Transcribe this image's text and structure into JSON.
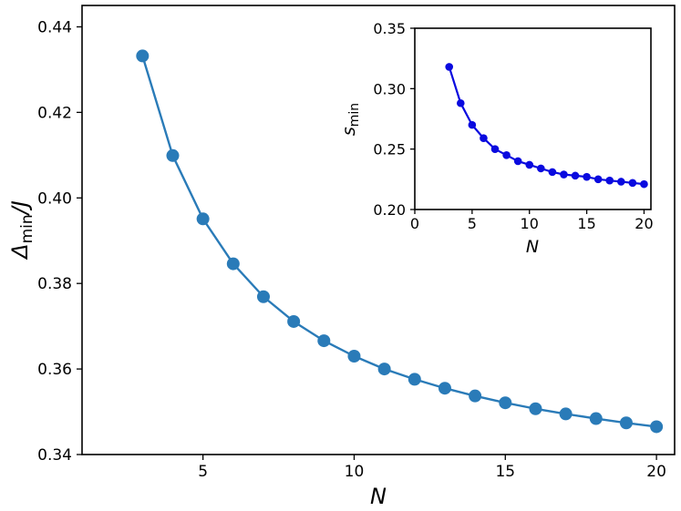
{
  "chart_data": [
    {
      "type": "line",
      "role": "main",
      "xlabel": "N",
      "ylabel": {
        "base": "Δ",
        "sub": "min",
        "suffix": "/J"
      },
      "xlim": [
        1,
        20.6
      ],
      "ylim": [
        0.34,
        0.445
      ],
      "x_ticks": [
        5,
        10,
        15,
        20
      ],
      "y_ticks": [
        0.34,
        0.36,
        0.38,
        0.4,
        0.42,
        0.44
      ],
      "x_tick_labels": [
        "5",
        "10",
        "15",
        "20"
      ],
      "y_tick_labels": [
        "0.34",
        "0.36",
        "0.38",
        "0.40",
        "0.42",
        "0.44"
      ],
      "grid": false,
      "color": "#2a7bb8",
      "series": [
        {
          "x": [
            3,
            4,
            5,
            6,
            7,
            8,
            9,
            10,
            11,
            12,
            13,
            14,
            15,
            16,
            17,
            18,
            19,
            20
          ],
          "values": [
            0.4332,
            0.4099,
            0.3951,
            0.3846,
            0.3769,
            0.3711,
            0.3666,
            0.363,
            0.36,
            0.3576,
            0.3555,
            0.3537,
            0.3521,
            0.3507,
            0.3495,
            0.3484,
            0.3474,
            0.3465
          ]
        }
      ]
    },
    {
      "type": "line",
      "role": "inset",
      "xlabel": "N",
      "ylabel": {
        "base": "s",
        "sub": "min",
        "suffix": ""
      },
      "xlim": [
        0,
        20.6
      ],
      "ylim": [
        0.2,
        0.35
      ],
      "x_ticks": [
        0,
        5,
        10,
        15,
        20
      ],
      "y_ticks": [
        0.2,
        0.25,
        0.3,
        0.35
      ],
      "x_tick_labels": [
        "0",
        "5",
        "10",
        "15",
        "20"
      ],
      "y_tick_labels": [
        "0.20",
        "0.25",
        "0.30",
        "0.35"
      ],
      "grid": false,
      "color": "#0a0adf",
      "series": [
        {
          "x": [
            3,
            4,
            5,
            6,
            7,
            8,
            9,
            10,
            11,
            12,
            13,
            14,
            15,
            16,
            17,
            18,
            19,
            20
          ],
          "values": [
            0.318,
            0.288,
            0.27,
            0.259,
            0.25,
            0.245,
            0.24,
            0.237,
            0.234,
            0.231,
            0.229,
            0.228,
            0.227,
            0.225,
            0.224,
            0.223,
            0.222,
            0.221
          ]
        }
      ]
    }
  ]
}
